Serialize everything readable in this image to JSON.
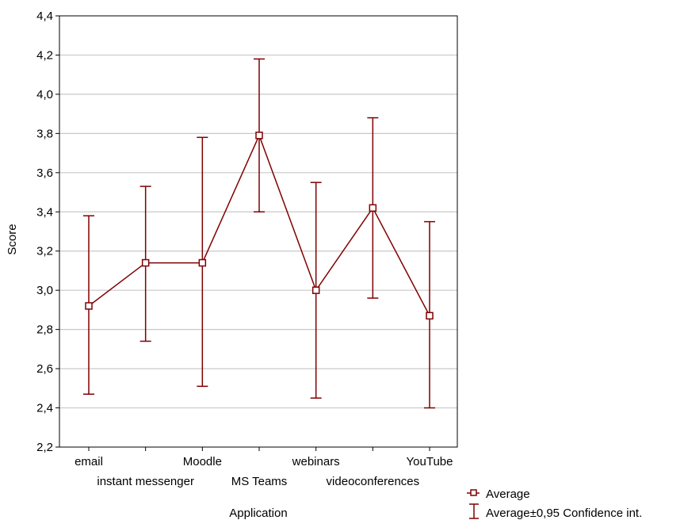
{
  "chart_data": {
    "type": "line",
    "xlabel": "Application",
    "ylabel": "Score",
    "ylim": [
      2.2,
      4.4
    ],
    "yticks": [
      "2,2",
      "2,4",
      "2,6",
      "2,8",
      "3,0",
      "3,2",
      "3,4",
      "3,6",
      "3,8",
      "4,0",
      "4,2",
      "4,4"
    ],
    "grid": true,
    "categories": [
      "email",
      "instant messenger",
      "Moodle",
      "MS Teams",
      "webinars",
      "videoconferences",
      "YouTube"
    ],
    "series": [
      {
        "name": "Average",
        "values": [
          2.92,
          3.14,
          3.14,
          3.79,
          3.0,
          3.42,
          2.87
        ],
        "ci_lower": [
          2.47,
          2.74,
          2.51,
          3.4,
          2.45,
          2.96,
          2.4
        ],
        "ci_upper": [
          3.38,
          3.53,
          3.78,
          4.18,
          3.55,
          3.88,
          3.35
        ]
      }
    ],
    "legend": {
      "position": "bottom-right",
      "items": [
        "Average",
        "Average±0,95 Confidence int."
      ]
    },
    "colors": {
      "series": "#800000",
      "grid": "#c8c8c8",
      "axis": "#000000"
    }
  }
}
